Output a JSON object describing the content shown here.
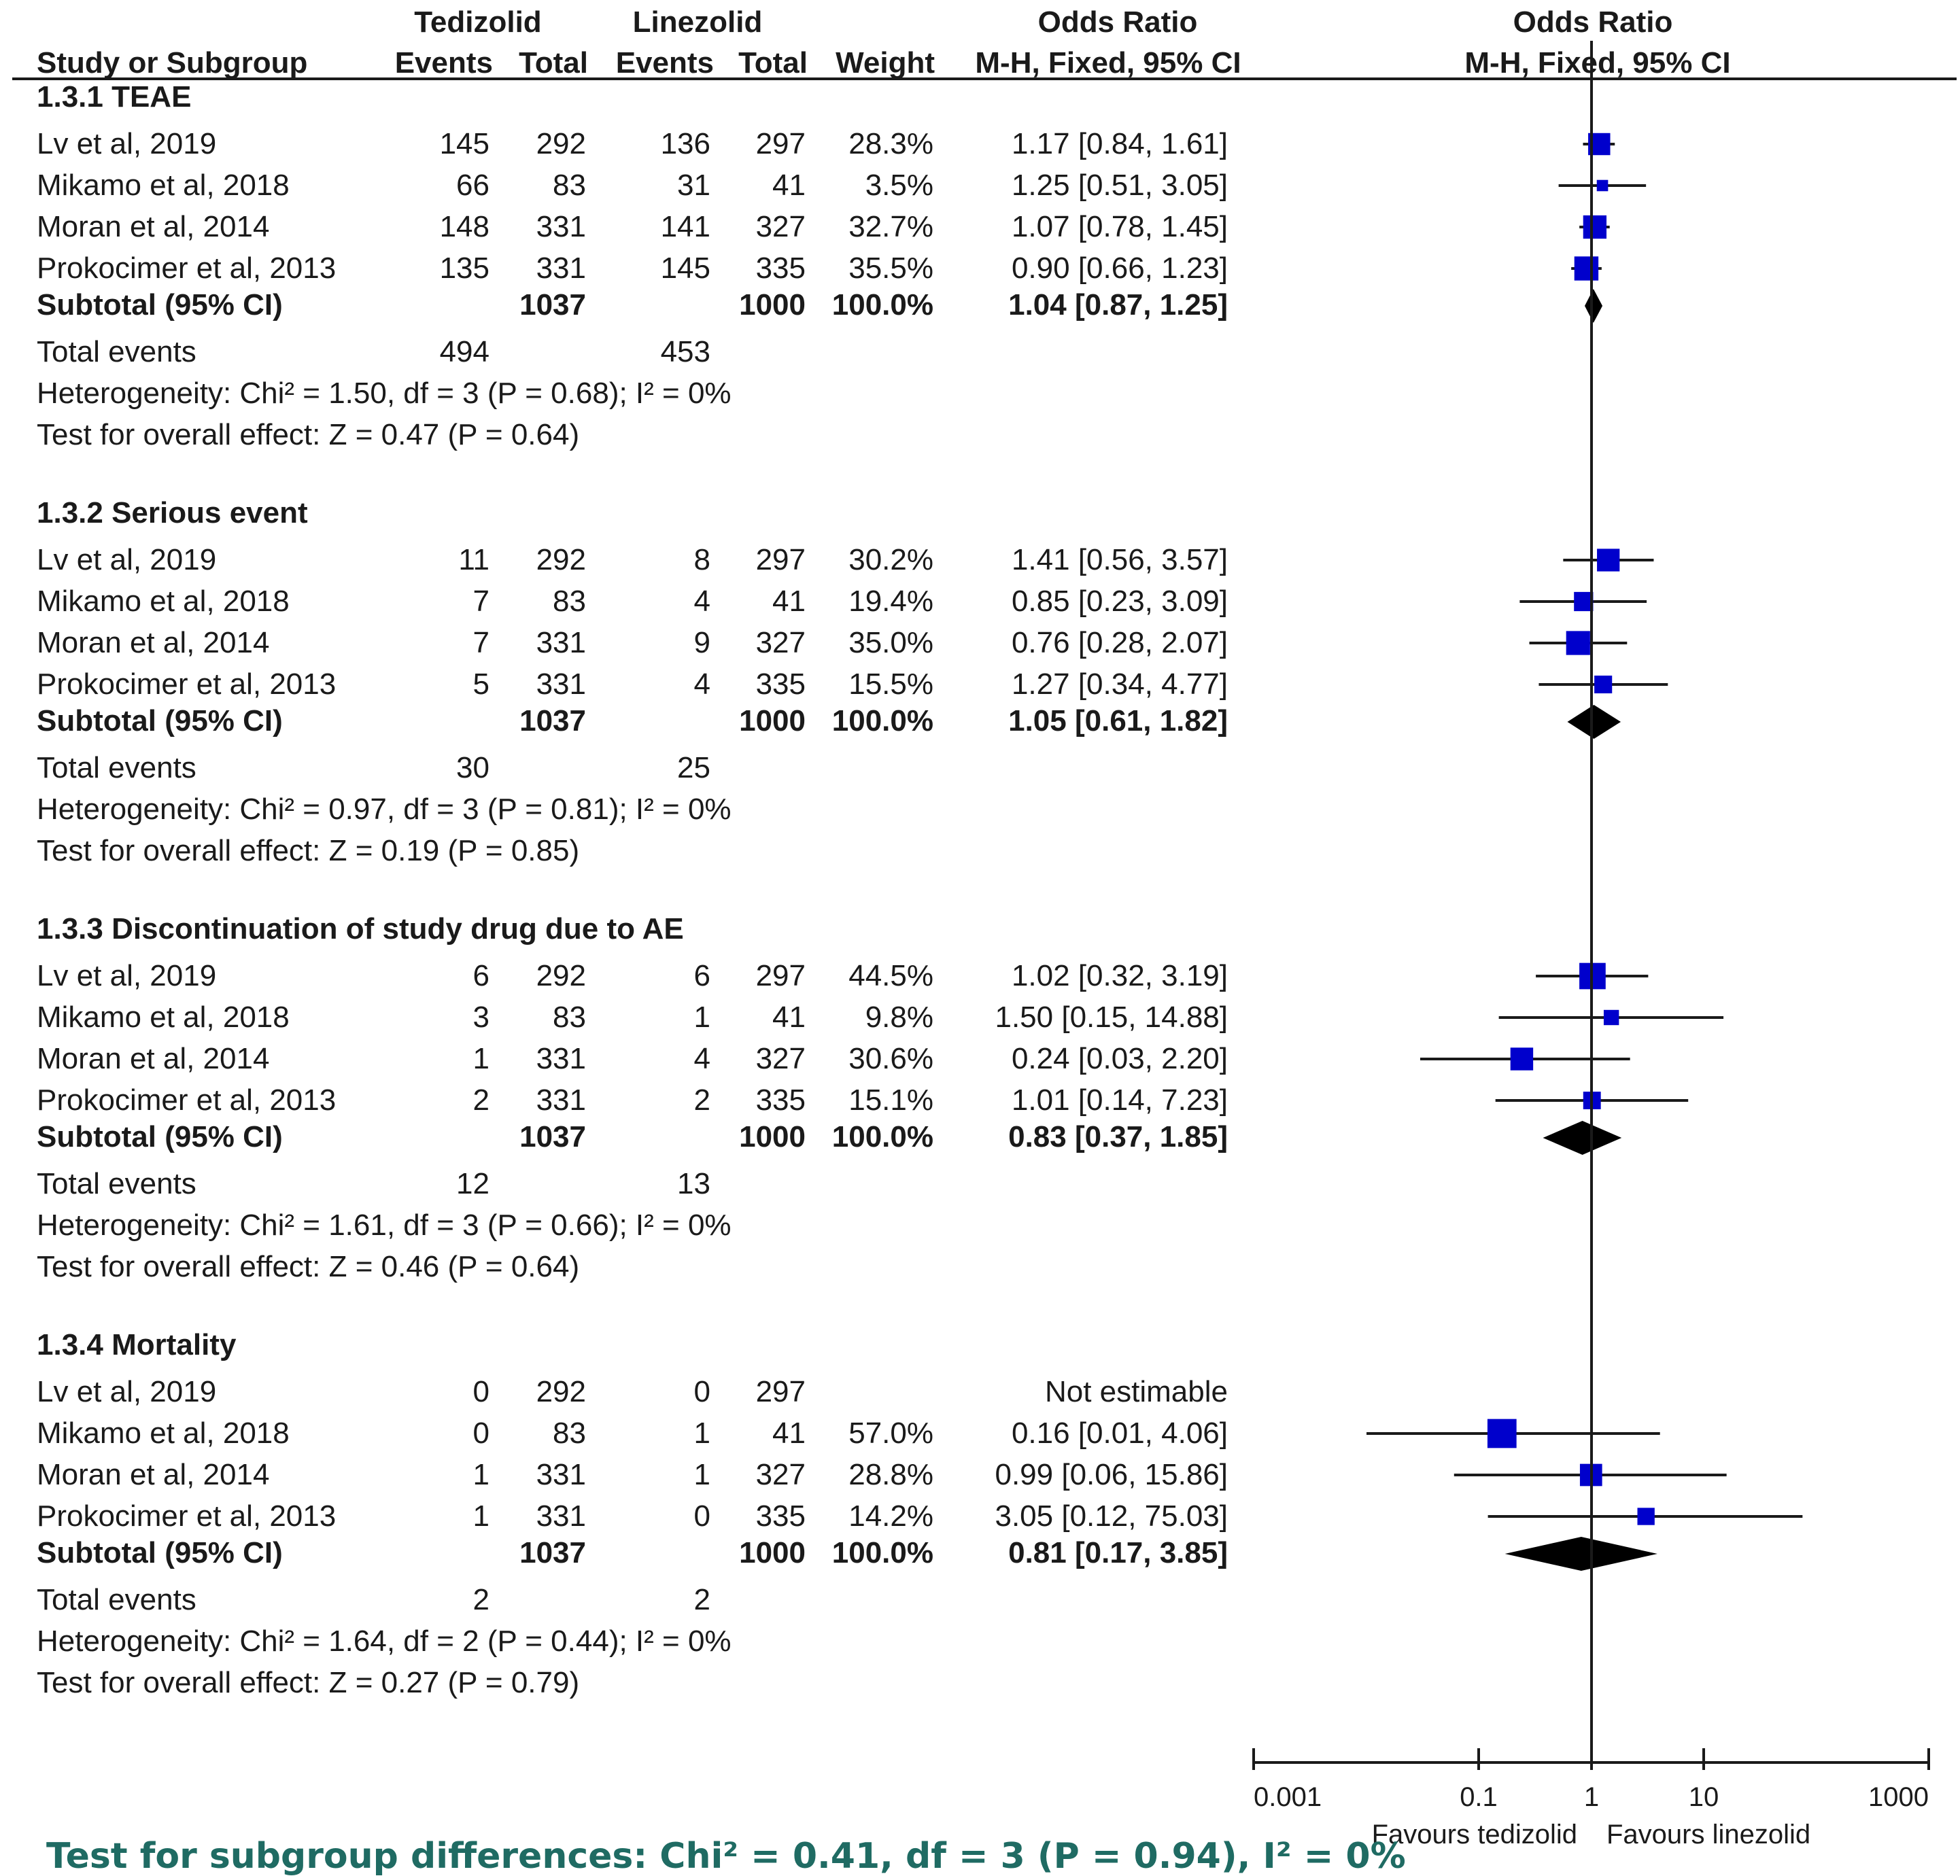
{
  "header": {
    "group1": "Tedizolid",
    "group2": "Linezolid",
    "or_col": "Odds Ratio",
    "or_plot": "Odds Ratio",
    "study": "Study or Subgroup",
    "events1": "Events",
    "total1": "Total",
    "events2": "Events",
    "total2": "Total",
    "weight": "Weight",
    "method_col": "M-H, Fixed, 95% CI",
    "method_plot": "M-H, Fixed, 95% CI"
  },
  "axis": {
    "ticks": [
      "0.001",
      "0.1",
      "1",
      "10",
      "1000"
    ],
    "favours_left": "Favours tedizolid",
    "favours_right": "Favours linezolid"
  },
  "footer": {
    "subgroup_test": "Test for subgroup differences: Chi² = 0.41, df = 3 (P = 0.94), I² = 0%"
  },
  "chart_data": {
    "type": "forest",
    "scale": "log",
    "xlim": [
      0.001,
      1000
    ],
    "reference_line": 1,
    "marker_color": "#0000cc",
    "summary_color": "#000000",
    "subgroups": [
      {
        "title": "1.3.1 TEAE",
        "studies": [
          {
            "name": "Lv et al, 2019",
            "e1": "145",
            "t1": "292",
            "e2": "136",
            "t2": "297",
            "weight": "28.3%",
            "ci_text": "1.17 [0.84, 1.61]",
            "or": 1.17,
            "lo": 0.84,
            "hi": 1.61,
            "w": 28.3
          },
          {
            "name": "Mikamo et al, 2018",
            "e1": "66",
            "t1": "83",
            "e2": "31",
            "t2": "41",
            "weight": "3.5%",
            "ci_text": "1.25 [0.51, 3.05]",
            "or": 1.25,
            "lo": 0.51,
            "hi": 3.05,
            "w": 3.5
          },
          {
            "name": "Moran et al, 2014",
            "e1": "148",
            "t1": "331",
            "e2": "141",
            "t2": "327",
            "weight": "32.7%",
            "ci_text": "1.07 [0.78, 1.45]",
            "or": 1.07,
            "lo": 0.78,
            "hi": 1.45,
            "w": 32.7
          },
          {
            "name": "Prokocimer et al, 2013",
            "e1": "135",
            "t1": "331",
            "e2": "145",
            "t2": "335",
            "weight": "35.5%",
            "ci_text": "0.90 [0.66, 1.23]",
            "or": 0.9,
            "lo": 0.66,
            "hi": 1.23,
            "w": 35.5
          }
        ],
        "subtotal": {
          "label": "Subtotal (95% CI)",
          "t1": "1037",
          "t2": "1000",
          "weight": "100.0%",
          "ci_text": "1.04 [0.87, 1.25]",
          "or": 1.04,
          "lo": 0.87,
          "hi": 1.25
        },
        "total_events": {
          "label": "Total events",
          "e1": "494",
          "e2": "453"
        },
        "heterogeneity": "Heterogeneity: Chi² = 1.50, df = 3 (P = 0.68); I² = 0%",
        "overall": "Test for overall effect: Z = 0.47 (P = 0.64)"
      },
      {
        "title": "1.3.2 Serious event",
        "studies": [
          {
            "name": "Lv et al, 2019",
            "e1": "11",
            "t1": "292",
            "e2": "8",
            "t2": "297",
            "weight": "30.2%",
            "ci_text": "1.41 [0.56, 3.57]",
            "or": 1.41,
            "lo": 0.56,
            "hi": 3.57,
            "w": 30.2
          },
          {
            "name": "Mikamo et al, 2018",
            "e1": "7",
            "t1": "83",
            "e2": "4",
            "t2": "41",
            "weight": "19.4%",
            "ci_text": "0.85 [0.23, 3.09]",
            "or": 0.85,
            "lo": 0.23,
            "hi": 3.09,
            "w": 19.4
          },
          {
            "name": "Moran et al, 2014",
            "e1": "7",
            "t1": "331",
            "e2": "9",
            "t2": "327",
            "weight": "35.0%",
            "ci_text": "0.76 [0.28, 2.07]",
            "or": 0.76,
            "lo": 0.28,
            "hi": 2.07,
            "w": 35.0
          },
          {
            "name": "Prokocimer et al, 2013",
            "e1": "5",
            "t1": "331",
            "e2": "4",
            "t2": "335",
            "weight": "15.5%",
            "ci_text": "1.27 [0.34, 4.77]",
            "or": 1.27,
            "lo": 0.34,
            "hi": 4.77,
            "w": 15.5
          }
        ],
        "subtotal": {
          "label": "Subtotal (95% CI)",
          "t1": "1037",
          "t2": "1000",
          "weight": "100.0%",
          "ci_text": "1.05 [0.61, 1.82]",
          "or": 1.05,
          "lo": 0.61,
          "hi": 1.82
        },
        "total_events": {
          "label": "Total events",
          "e1": "30",
          "e2": "25"
        },
        "heterogeneity": "Heterogeneity: Chi² = 0.97, df = 3 (P = 0.81); I² = 0%",
        "overall": "Test for overall effect: Z = 0.19 (P = 0.85)"
      },
      {
        "title": "1.3.3 Discontinuation of study drug due to AE",
        "studies": [
          {
            "name": "Lv et al, 2019",
            "e1": "6",
            "t1": "292",
            "e2": "6",
            "t2": "297",
            "weight": "44.5%",
            "ci_text": "1.02 [0.32, 3.19]",
            "or": 1.02,
            "lo": 0.32,
            "hi": 3.19,
            "w": 44.5
          },
          {
            "name": "Mikamo et al, 2018",
            "e1": "3",
            "t1": "83",
            "e2": "1",
            "t2": "41",
            "weight": "9.8%",
            "ci_text": "1.50 [0.15, 14.88]",
            "or": 1.5,
            "lo": 0.15,
            "hi": 14.88,
            "w": 9.8
          },
          {
            "name": "Moran et al, 2014",
            "e1": "1",
            "t1": "331",
            "e2": "4",
            "t2": "327",
            "weight": "30.6%",
            "ci_text": "0.24 [0.03, 2.20]",
            "or": 0.24,
            "lo": 0.03,
            "hi": 2.2,
            "w": 30.6
          },
          {
            "name": "Prokocimer et al, 2013",
            "e1": "2",
            "t1": "331",
            "e2": "2",
            "t2": "335",
            "weight": "15.1%",
            "ci_text": "1.01 [0.14, 7.23]",
            "or": 1.01,
            "lo": 0.14,
            "hi": 7.23,
            "w": 15.1
          }
        ],
        "subtotal": {
          "label": "Subtotal (95% CI)",
          "t1": "1037",
          "t2": "1000",
          "weight": "100.0%",
          "ci_text": "0.83 [0.37, 1.85]",
          "or": 0.83,
          "lo": 0.37,
          "hi": 1.85
        },
        "total_events": {
          "label": "Total events",
          "e1": "12",
          "e2": "13"
        },
        "heterogeneity": "Heterogeneity: Chi² = 1.61, df = 3 (P = 0.66); I² = 0%",
        "overall": "Test for overall effect: Z = 0.46 (P = 0.64)"
      },
      {
        "title": "1.3.4 Mortality",
        "studies": [
          {
            "name": "Lv et al, 2019",
            "e1": "0",
            "t1": "292",
            "e2": "0",
            "t2": "297",
            "weight": "",
            "ci_text": "Not estimable",
            "or": null,
            "lo": null,
            "hi": null,
            "w": null
          },
          {
            "name": "Mikamo et al, 2018",
            "e1": "0",
            "t1": "83",
            "e2": "1",
            "t2": "41",
            "weight": "57.0%",
            "ci_text": "0.16 [0.01, 4.06]",
            "or": 0.16,
            "lo": 0.01,
            "hi": 4.06,
            "w": 57.0
          },
          {
            "name": "Moran et al, 2014",
            "e1": "1",
            "t1": "331",
            "e2": "1",
            "t2": "327",
            "weight": "28.8%",
            "ci_text": "0.99 [0.06, 15.86]",
            "or": 0.99,
            "lo": 0.06,
            "hi": 15.86,
            "w": 28.8
          },
          {
            "name": "Prokocimer et al, 2013",
            "e1": "1",
            "t1": "331",
            "e2": "0",
            "t2": "335",
            "weight": "14.2%",
            "ci_text": "3.05 [0.12, 75.03]",
            "or": 3.05,
            "lo": 0.12,
            "hi": 75.03,
            "w": 14.2
          }
        ],
        "subtotal": {
          "label": "Subtotal (95% CI)",
          "t1": "1037",
          "t2": "1000",
          "weight": "100.0%",
          "ci_text": "0.81 [0.17, 3.85]",
          "or": 0.81,
          "lo": 0.17,
          "hi": 3.85
        },
        "total_events": {
          "label": "Total events",
          "e1": "2",
          "e2": "2"
        },
        "heterogeneity": "Heterogeneity: Chi² = 1.64, df = 2 (P = 0.44); I² = 0%",
        "overall": "Test for overall effect: Z = 0.27 (P = 0.79)"
      }
    ]
  }
}
